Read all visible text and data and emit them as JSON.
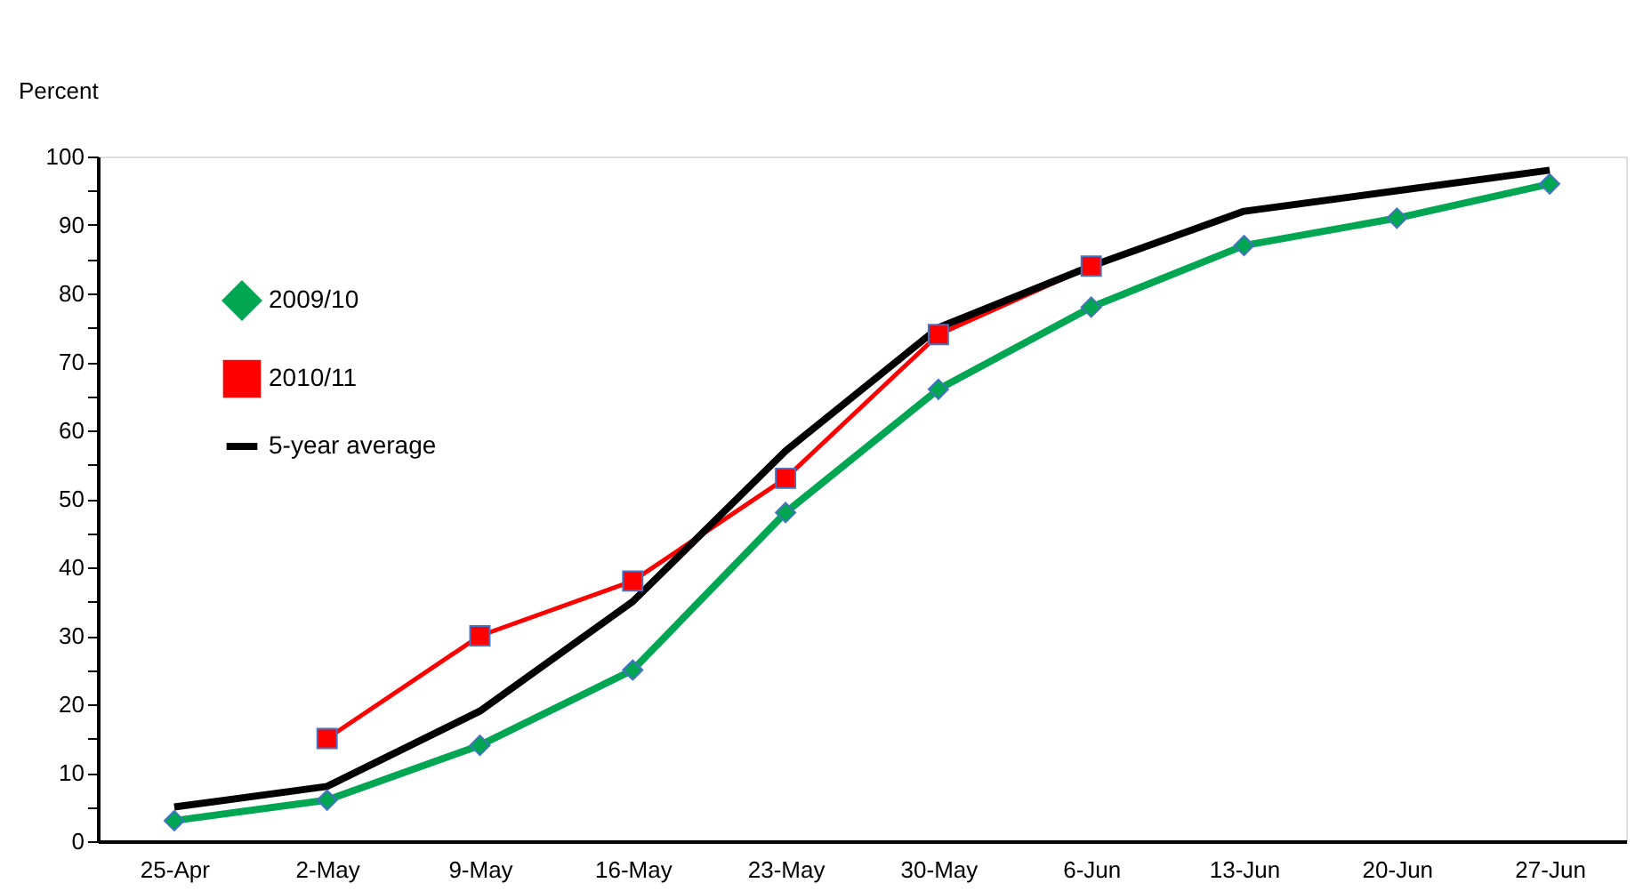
{
  "chart_data": {
    "type": "line",
    "ylabel": "Percent",
    "categories": [
      "25-Apr",
      "2-May",
      "9-May",
      "16-May",
      "23-May",
      "30-May",
      "6-Jun",
      "13-Jun",
      "20-Jun",
      "27-Jun"
    ],
    "series": [
      {
        "name": "2009/10",
        "color": "#00a651",
        "marker": "diamond",
        "values": [
          3,
          6,
          14,
          25,
          48,
          66,
          78,
          87,
          91,
          96
        ]
      },
      {
        "name": "2010/11",
        "color": "#ff0000",
        "marker": "square",
        "values": [
          null,
          15,
          30,
          38,
          53,
          74,
          84,
          null,
          null,
          null
        ]
      },
      {
        "name": "5-year average",
        "color": "#000000",
        "marker": "none",
        "values": [
          5,
          8,
          19,
          35,
          57,
          75,
          84,
          92,
          95,
          98
        ]
      }
    ],
    "ylim": [
      0,
      100
    ],
    "yticks": [
      0,
      {
        "value": 5,
        "label": null
      },
      10,
      {
        "value": 15,
        "label": null
      },
      20,
      {
        "value": 25,
        "label": null
      },
      30,
      {
        "value": 35,
        "label": null
      },
      40,
      {
        "value": 45,
        "label": null
      },
      50,
      {
        "value": 55,
        "label": null
      },
      60,
      {
        "value": 65,
        "label": null
      },
      70,
      {
        "value": 75,
        "label": null
      },
      80,
      {
        "value": 85,
        "label": null
      },
      90,
      {
        "value": 95,
        "label": null
      },
      100
    ],
    "grid": false,
    "legend": "top left",
    "line_style": "solid"
  }
}
